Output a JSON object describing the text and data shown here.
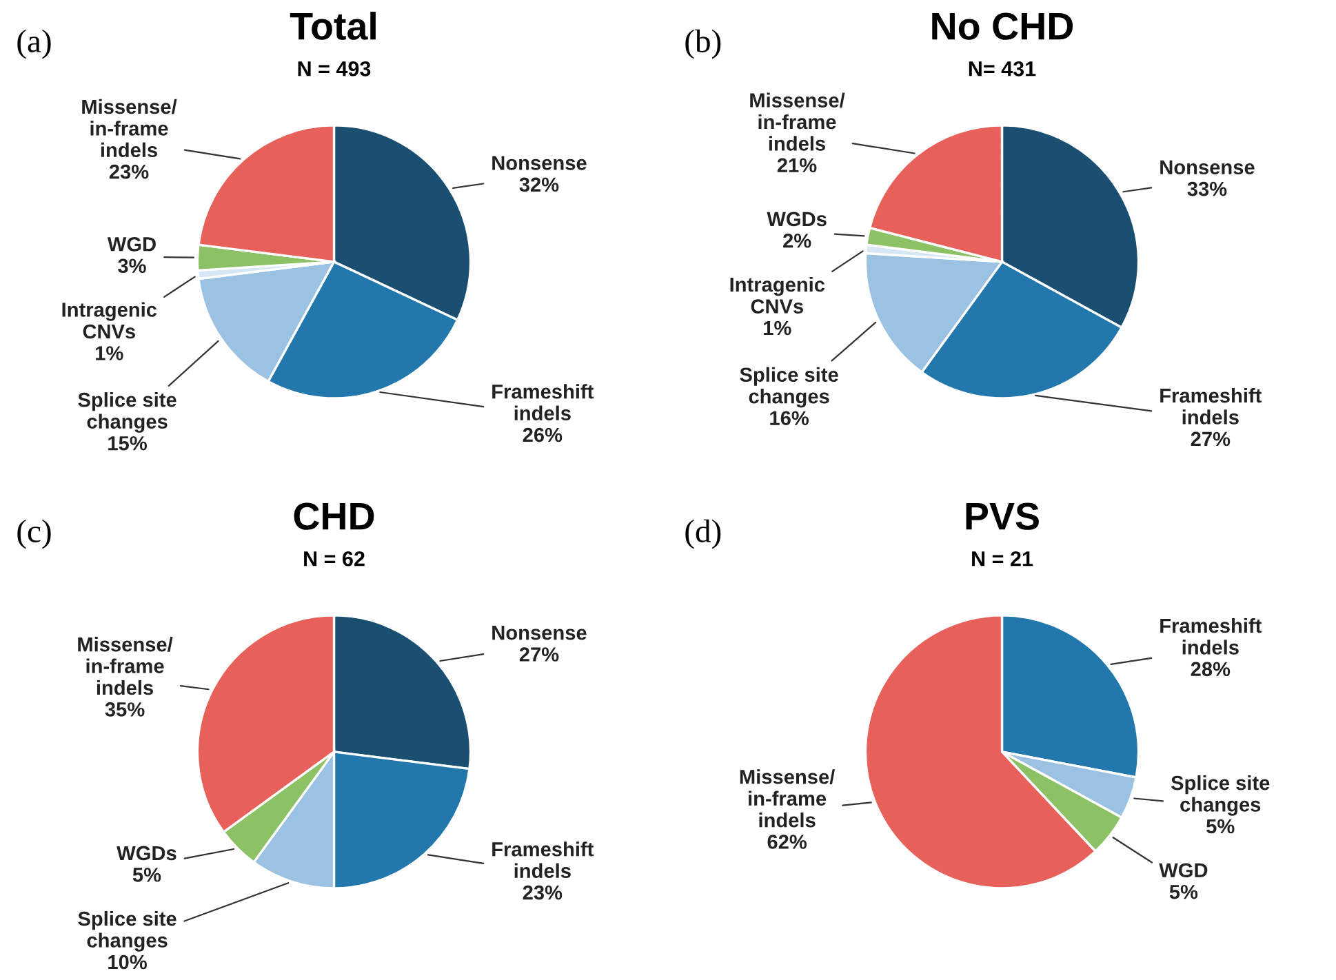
{
  "chart_data": [
    {
      "type": "pie",
      "title": "Total",
      "subtitle": "N = 493",
      "annotations": [
        "(a)"
      ],
      "categories": [
        "Nonsense",
        "Frameshift\nindels",
        "Splice site\nchanges",
        "Intragenic\nCNVs",
        "WGD",
        "Missense/\nin-frame\nindels"
      ],
      "values": [
        32,
        26,
        15,
        1,
        3,
        23
      ],
      "value_labels": [
        "32%",
        "26%",
        "15%",
        "1%",
        "3%",
        "23%"
      ],
      "colors": [
        "#1b4f72",
        "#2278ad",
        "#9bc2e3",
        "#d6e6f4",
        "#8cc265",
        "#e8605a"
      ]
    },
    {
      "type": "pie",
      "title": "No CHD",
      "subtitle": "N= 431",
      "annotations": [
        "(b)"
      ],
      "categories": [
        "Nonsense",
        "Frameshift\nindels",
        "Splice site\nchanges",
        "Intragenic\nCNVs",
        "WGDs",
        "Missense/\nin-frame\nindels"
      ],
      "values": [
        33,
        27,
        16,
        1,
        2,
        21
      ],
      "value_labels": [
        "33%",
        "27%",
        "16%",
        "1%",
        "2%",
        "21%"
      ],
      "colors": [
        "#1b4f72",
        "#2278ad",
        "#9bc2e3",
        "#d6e6f4",
        "#8cc265",
        "#e8605a"
      ]
    },
    {
      "type": "pie",
      "title": "CHD",
      "subtitle": "N = 62",
      "annotations": [
        "(c)"
      ],
      "categories": [
        "Nonsense",
        "Frameshift\nindels",
        "Splice site\nchanges",
        "WGDs",
        "Missense/\nin-frame\nindels"
      ],
      "values": [
        27,
        23,
        10,
        5,
        35
      ],
      "value_labels": [
        "27%",
        "23%",
        "10%",
        "5%",
        "35%"
      ],
      "colors": [
        "#1b4f72",
        "#2278ad",
        "#9bc2e3",
        "#8cc265",
        "#e8605a"
      ]
    },
    {
      "type": "pie",
      "title": "PVS",
      "subtitle": "N = 21",
      "annotations": [
        "(d)"
      ],
      "categories": [
        "Frameshift\nindels",
        "Splice site\nchanges",
        "WGD",
        "Missense/\nin-frame\nindels"
      ],
      "values": [
        28,
        5,
        5,
        62
      ],
      "value_labels": [
        "28%",
        "5%",
        "5%",
        "62%"
      ],
      "colors": [
        "#2278ad",
        "#9bc2e3",
        "#8cc265",
        "#e8605a"
      ]
    }
  ]
}
